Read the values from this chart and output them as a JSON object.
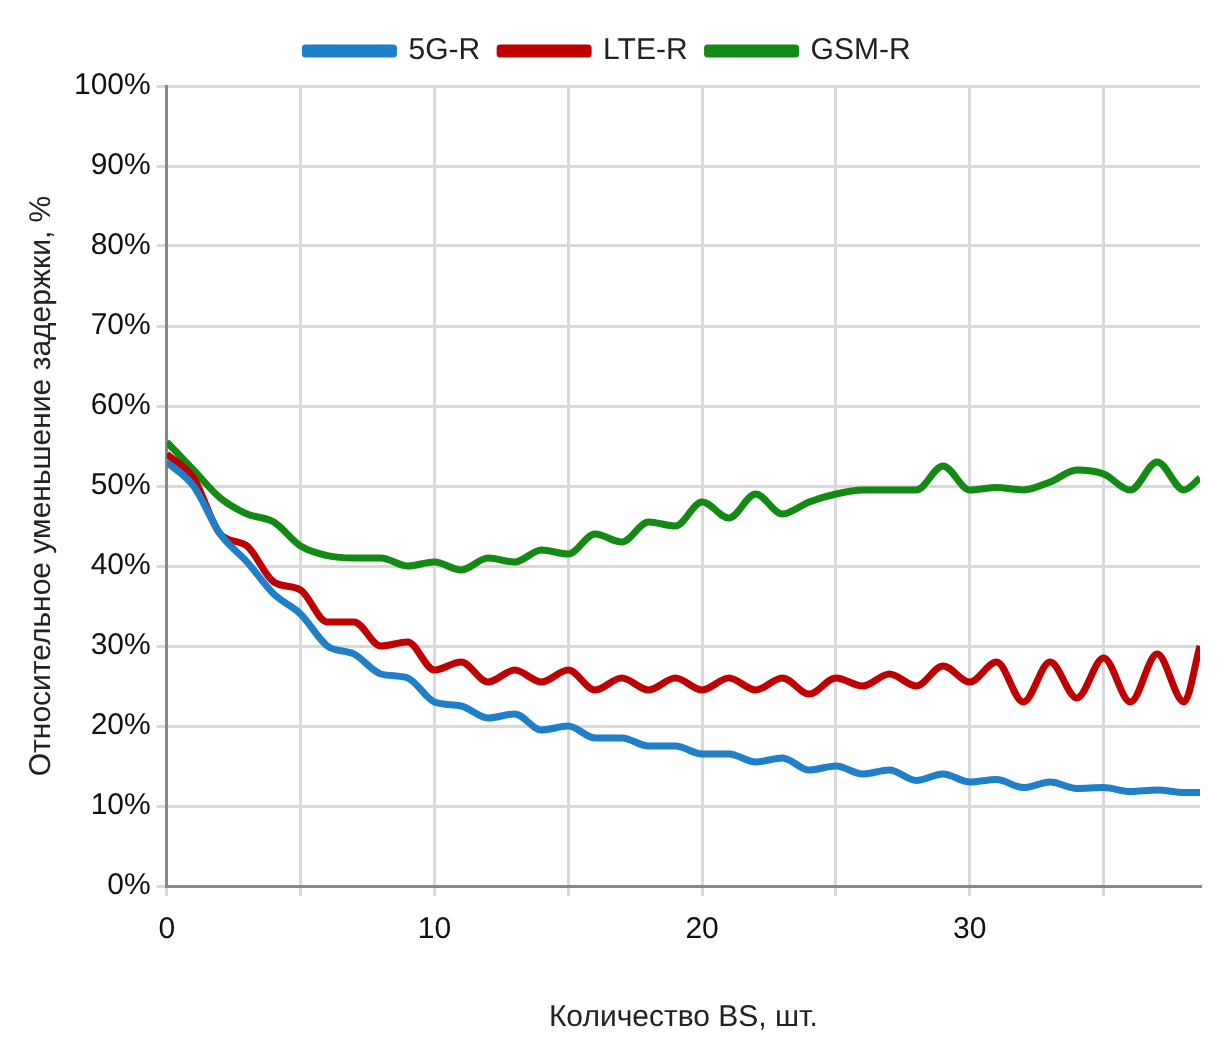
{
  "chart_data": {
    "type": "line",
    "xlabel": "Количество BS, шт.",
    "ylabel": "Относительное уменьшение задержки, %",
    "x": [
      0,
      1,
      2,
      3,
      4,
      5,
      6,
      7,
      8,
      9,
      10,
      11,
      12,
      13,
      14,
      15,
      16,
      17,
      18,
      19,
      20,
      21,
      22,
      23,
      24,
      25,
      26,
      27,
      28,
      29,
      30,
      31,
      32,
      33,
      34,
      35,
      36,
      37,
      38,
      38.6
    ],
    "xlim": [
      0,
      38.6
    ],
    "xticks": [
      0,
      {
        "value": 5,
        "label": null
      },
      10,
      {
        "value": 15,
        "label": null
      },
      20,
      {
        "value": 25,
        "label": null
      },
      30,
      {
        "value": 35,
        "label": null
      }
    ],
    "ylim": [
      0,
      100
    ],
    "yticks": [
      {
        "value": 0,
        "label": "0%"
      },
      {
        "value": 10,
        "label": "10%"
      },
      {
        "value": 20,
        "label": "20%"
      },
      {
        "value": 30,
        "label": "30%"
      },
      {
        "value": 40,
        "label": "40%"
      },
      {
        "value": 50,
        "label": "50%"
      },
      {
        "value": 60,
        "label": "60%"
      },
      {
        "value": 70,
        "label": "70%"
      },
      {
        "value": 80,
        "label": "80%"
      },
      {
        "value": 90,
        "label": "90%"
      },
      {
        "value": 100,
        "label": "100%"
      }
    ],
    "grid": true,
    "legend": "top",
    "marker": "none",
    "line_style": "solid",
    "series": [
      {
        "name": "5G-R",
        "color": "#1f7fc9",
        "values": [
          53,
          50,
          44,
          40.5,
          36.5,
          34,
          30,
          29,
          26.5,
          26,
          23,
          22.5,
          21,
          21.5,
          19.5,
          20,
          18.5,
          18.5,
          17.5,
          17.5,
          16.5,
          16.5,
          15.5,
          16,
          14.5,
          15,
          14,
          14.5,
          13.2,
          14,
          13,
          13.3,
          12.3,
          13,
          12.2,
          12.3,
          11.8,
          12,
          11.7,
          11.7
        ]
      },
      {
        "name": "LTE-R",
        "color": "#c00000",
        "values": [
          54,
          51,
          44,
          42.5,
          38,
          37,
          33,
          33,
          30,
          30.5,
          27,
          28,
          25.5,
          27,
          25.5,
          27,
          24.5,
          26,
          24.5,
          26,
          24.5,
          26,
          24.5,
          26,
          24,
          26,
          25,
          26.5,
          25,
          27.5,
          25.5,
          28,
          23,
          28,
          23.5,
          28.5,
          23,
          29,
          23,
          30
        ]
      },
      {
        "name": "GSM-R",
        "color": "#138a13",
        "values": [
          55.5,
          52,
          48.5,
          46.5,
          45.5,
          42.5,
          41.3,
          41,
          41,
          40,
          40.5,
          39.5,
          41,
          40.5,
          42,
          41.5,
          44,
          43,
          45.5,
          45,
          48,
          46,
          49,
          46.5,
          48,
          49,
          49.5,
          49.5,
          49.5,
          52.5,
          49.5,
          49.8,
          49.5,
          50.5,
          52,
          51.5,
          49.5,
          53,
          49.5,
          51
        ]
      }
    ]
  }
}
